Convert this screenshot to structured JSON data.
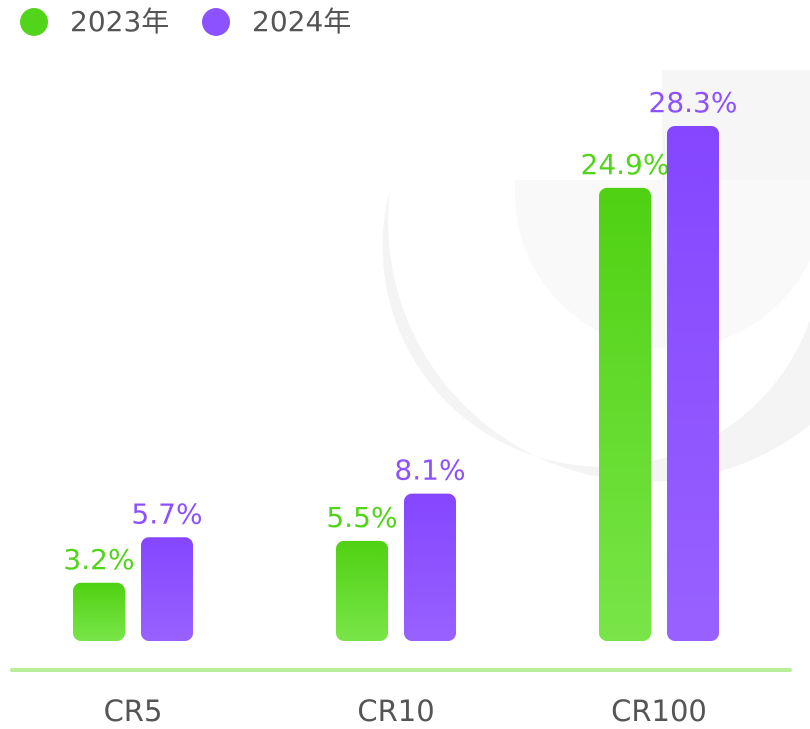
{
  "chart_data": {
    "type": "bar",
    "categories": [
      "CR5",
      "CR10",
      "CR100"
    ],
    "series": [
      {
        "name": "2023年",
        "values": [
          3.2,
          5.5,
          24.9
        ],
        "labels": [
          "3.2%",
          "5.5%",
          "24.9%"
        ],
        "color": "#52D41A"
      },
      {
        "name": "2024年",
        "values": [
          5.7,
          8.1,
          28.3
        ],
        "labels": [
          "5.7%",
          "8.1%",
          "28.3%"
        ],
        "color": "#8C52FF"
      }
    ],
    "legend_position": "top-left",
    "ylim": [
      0,
      30
    ],
    "grid": false
  }
}
